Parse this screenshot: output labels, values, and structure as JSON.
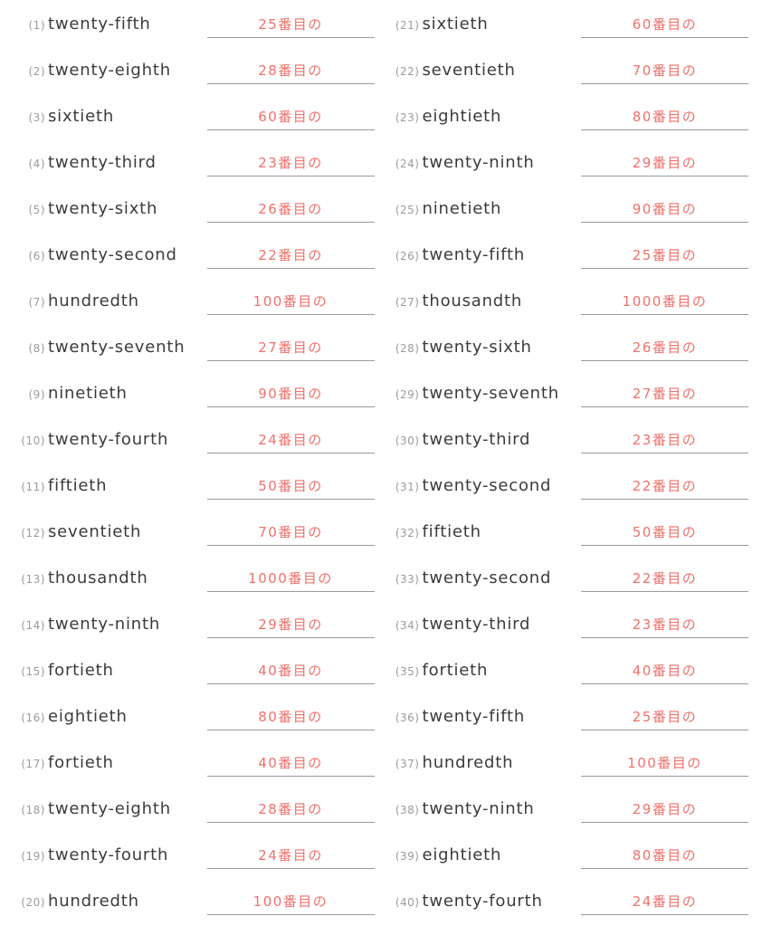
{
  "page": {
    "type": "vocabulary-worksheet",
    "language_pair": "English ordinal → Japanese",
    "colors": {
      "background": "#ffffff",
      "answer_red": "#f0716b",
      "word_dark": "#3b3b3b",
      "number_gray": "#9b9b9b",
      "underline_gray": "#999999"
    }
  },
  "items": [
    {
      "num": "(1)",
      "word": "twenty-fifth",
      "answer": "25番目の"
    },
    {
      "num": "(2)",
      "word": "twenty-eighth",
      "answer": "28番目の"
    },
    {
      "num": "(3)",
      "word": "sixtieth",
      "answer": "60番目の"
    },
    {
      "num": "(4)",
      "word": "twenty-third",
      "answer": "23番目の"
    },
    {
      "num": "(5)",
      "word": "twenty-sixth",
      "answer": "26番目の"
    },
    {
      "num": "(6)",
      "word": "twenty-second",
      "answer": "22番目の"
    },
    {
      "num": "(7)",
      "word": "hundredth",
      "answer": "100番目の"
    },
    {
      "num": "(8)",
      "word": "twenty-seventh",
      "answer": "27番目の"
    },
    {
      "num": "(9)",
      "word": "ninetieth",
      "answer": "90番目の"
    },
    {
      "num": "(10)",
      "word": "twenty-fourth",
      "answer": "24番目の"
    },
    {
      "num": "(11)",
      "word": "fiftieth",
      "answer": "50番目の"
    },
    {
      "num": "(12)",
      "word": "seventieth",
      "answer": "70番目の"
    },
    {
      "num": "(13)",
      "word": "thousandth",
      "answer": "1000番目の"
    },
    {
      "num": "(14)",
      "word": "twenty-ninth",
      "answer": "29番目の"
    },
    {
      "num": "(15)",
      "word": "fortieth",
      "answer": "40番目の"
    },
    {
      "num": "(16)",
      "word": "eightieth",
      "answer": "80番目の"
    },
    {
      "num": "(17)",
      "word": "fortieth",
      "answer": "40番目の"
    },
    {
      "num": "(18)",
      "word": "twenty-eighth",
      "answer": "28番目の"
    },
    {
      "num": "(19)",
      "word": "twenty-fourth",
      "answer": "24番目の"
    },
    {
      "num": "(20)",
      "word": "hundredth",
      "answer": "100番目の"
    },
    {
      "num": "(21)",
      "word": "sixtieth",
      "answer": "60番目の"
    },
    {
      "num": "(22)",
      "word": "seventieth",
      "answer": "70番目の"
    },
    {
      "num": "(23)",
      "word": "eightieth",
      "answer": "80番目の"
    },
    {
      "num": "(24)",
      "word": "twenty-ninth",
      "answer": "29番目の"
    },
    {
      "num": "(25)",
      "word": "ninetieth",
      "answer": "90番目の"
    },
    {
      "num": "(26)",
      "word": "twenty-fifth",
      "answer": "25番目の"
    },
    {
      "num": "(27)",
      "word": "thousandth",
      "answer": "1000番目の"
    },
    {
      "num": "(28)",
      "word": "twenty-sixth",
      "answer": "26番目の"
    },
    {
      "num": "(29)",
      "word": "twenty-seventh",
      "answer": "27番目の"
    },
    {
      "num": "(30)",
      "word": "twenty-third",
      "answer": "23番目の"
    },
    {
      "num": "(31)",
      "word": "twenty-second",
      "answer": "22番目の"
    },
    {
      "num": "(32)",
      "word": "fiftieth",
      "answer": "50番目の"
    },
    {
      "num": "(33)",
      "word": "twenty-second",
      "answer": "22番目の"
    },
    {
      "num": "(34)",
      "word": "twenty-third",
      "answer": "23番目の"
    },
    {
      "num": "(35)",
      "word": "fortieth",
      "answer": "40番目の"
    },
    {
      "num": "(36)",
      "word": "twenty-fifth",
      "answer": "25番目の"
    },
    {
      "num": "(37)",
      "word": "hundredth",
      "answer": "100番目の"
    },
    {
      "num": "(38)",
      "word": "twenty-ninth",
      "answer": "29番目の"
    },
    {
      "num": "(39)",
      "word": "eightieth",
      "answer": "80番目の"
    },
    {
      "num": "(40)",
      "word": "twenty-fourth",
      "answer": "24番目の"
    }
  ]
}
